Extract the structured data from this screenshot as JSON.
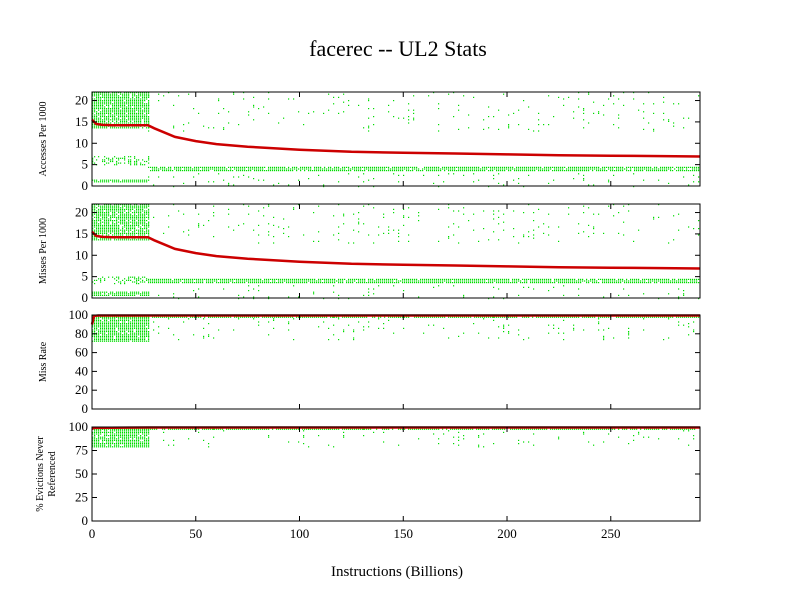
{
  "chart_data": {
    "type": "scatter",
    "title": "facerec -- UL2  Stats",
    "xlabel": "Instructions (Billions)",
    "xlim": [
      0,
      293
    ],
    "xticks": [
      "0",
      "50",
      "100",
      "150",
      "200",
      "250"
    ],
    "xtick_values": [
      0,
      50,
      100,
      150,
      200,
      250
    ],
    "colors": {
      "scatter": "#00dd00",
      "cumulative": "#cc0000",
      "axis": "#000000"
    },
    "panels": [
      {
        "ylabel": "Accesses Per 1000",
        "ylim": [
          0,
          22
        ],
        "yticks": [
          "0",
          "5",
          "10",
          "15",
          "20"
        ],
        "ytick_values": [
          0,
          5,
          10,
          15,
          20
        ],
        "cumulative_series": {
          "x": [
            0,
            2,
            5,
            10,
            20,
            27,
            30,
            40,
            50,
            60,
            75,
            100,
            125,
            150,
            175,
            200,
            225,
            250,
            275,
            293
          ],
          "y": [
            15.5,
            14.5,
            14.3,
            14.2,
            14.2,
            14.2,
            13.5,
            11.5,
            10.5,
            9.8,
            9.2,
            8.5,
            8.0,
            7.8,
            7.6,
            7.4,
            7.2,
            7.1,
            7.0,
            6.9
          ]
        },
        "scatter_bands": [
          {
            "x": [
              0,
              27
            ],
            "y": [
              13.5,
              22
            ],
            "density": "dense"
          },
          {
            "x": [
              0,
              27
            ],
            "y": [
              5,
              7
            ],
            "density": "medium"
          },
          {
            "x": [
              0,
              27
            ],
            "y": [
              1,
              1.5
            ],
            "density": "dense"
          },
          {
            "x": [
              27,
              293
            ],
            "y": [
              3.5,
              4.5
            ],
            "density": "dense"
          },
          {
            "x": [
              27,
              293
            ],
            "y": [
              13,
              22
            ],
            "density": "sparse"
          },
          {
            "x": [
              27,
              293
            ],
            "y": [
              0,
              3
            ],
            "density": "sparse"
          }
        ]
      },
      {
        "ylabel": "Misses Per 1000",
        "ylim": [
          0,
          22
        ],
        "yticks": [
          "0",
          "5",
          "10",
          "15",
          "20"
        ],
        "ytick_values": [
          0,
          5,
          10,
          15,
          20
        ],
        "cumulative_series": {
          "x": [
            0,
            2,
            5,
            10,
            20,
            27,
            30,
            40,
            50,
            60,
            75,
            100,
            125,
            150,
            175,
            200,
            225,
            250,
            275,
            293
          ],
          "y": [
            15.5,
            14.5,
            14.3,
            14.2,
            14.2,
            14.2,
            13.5,
            11.5,
            10.5,
            9.8,
            9.2,
            8.5,
            8.0,
            7.8,
            7.6,
            7.4,
            7.2,
            7.1,
            7.0,
            6.9
          ]
        },
        "scatter_bands": [
          {
            "x": [
              0,
              27
            ],
            "y": [
              13.5,
              22
            ],
            "density": "dense"
          },
          {
            "x": [
              0,
              27
            ],
            "y": [
              3.5,
              5
            ],
            "density": "medium"
          },
          {
            "x": [
              0,
              27
            ],
            "y": [
              0.5,
              1.5
            ],
            "density": "dense"
          },
          {
            "x": [
              27,
              293
            ],
            "y": [
              3.5,
              4.5
            ],
            "density": "dense"
          },
          {
            "x": [
              27,
              293
            ],
            "y": [
              13,
              22
            ],
            "density": "sparse"
          },
          {
            "x": [
              27,
              293
            ],
            "y": [
              0,
              3
            ],
            "density": "sparse"
          }
        ]
      },
      {
        "ylabel": "Miss Rate",
        "ylim": [
          0,
          100
        ],
        "yticks": [
          "0",
          "20",
          "40",
          "60",
          "80",
          "100"
        ],
        "ytick_values": [
          0,
          20,
          40,
          60,
          80,
          100
        ],
        "cumulative_series": {
          "x": [
            0,
            1,
            3,
            27,
            100,
            200,
            293
          ],
          "y": [
            90,
            99,
            99.5,
            99.5,
            99.5,
            99.5,
            99.5
          ]
        },
        "scatter_bands": [
          {
            "x": [
              0,
              27
            ],
            "y": [
              72,
              100
            ],
            "density": "dense"
          },
          {
            "x": [
              27,
              293
            ],
            "y": [
              73,
              100
            ],
            "density": "sparse"
          },
          {
            "x": [
              0,
              293
            ],
            "y": [
              98,
              100
            ],
            "density": "dense"
          }
        ]
      },
      {
        "ylabel": "% Evictions Never Referenced",
        "ylim": [
          0,
          100
        ],
        "yticks": [
          "0",
          "25",
          "50",
          "75",
          "100"
        ],
        "ytick_values": [
          0,
          25,
          50,
          75,
          100
        ],
        "cumulative_series": {
          "x": [
            0,
            1,
            27,
            100,
            200,
            293
          ],
          "y": [
            98,
            99,
            99.5,
            99.5,
            99.5,
            99.5
          ]
        },
        "scatter_bands": [
          {
            "x": [
              0,
              27
            ],
            "y": [
              78,
              100
            ],
            "density": "dense"
          },
          {
            "x": [
              27,
              293
            ],
            "y": [
              78,
              100
            ],
            "density": "sparse"
          },
          {
            "x": [
              0,
              293
            ],
            "y": [
              98,
              100
            ],
            "density": "dense"
          }
        ]
      }
    ]
  }
}
